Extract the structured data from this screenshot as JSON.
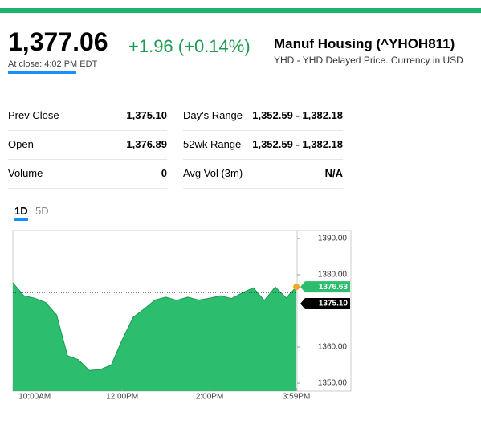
{
  "header": {
    "price": "1,377.06",
    "change": "+1.96 (+0.14%)",
    "close_time": "At close: 4:02 PM EDT",
    "name": "Manuf Housing (^YHOH811)",
    "source": "YHD - YHD Delayed Price. Currency in USD"
  },
  "stats": {
    "left": [
      [
        "Prev Close",
        "1,375.10"
      ],
      [
        "Open",
        "1,376.89"
      ],
      [
        "Volume",
        "0"
      ]
    ],
    "right": [
      [
        "Day's Range",
        "1,352.59 - 1,382.18"
      ],
      [
        "52wk Range",
        "1,352.59 - 1,382.18"
      ],
      [
        "Avg Vol (3m)",
        "N/A"
      ]
    ]
  },
  "tabs": [
    "1D",
    "5D"
  ],
  "chart_data": {
    "type": "area",
    "color": "#2dbd6e",
    "line_color": "#1a9a52",
    "x": [
      9.5,
      9.75,
      10,
      10.25,
      10.5,
      10.75,
      11,
      11.25,
      11.5,
      11.75,
      12,
      12.25,
      12.5,
      12.75,
      13,
      13.25,
      13.5,
      13.75,
      14,
      14.25,
      14.5,
      14.75,
      15,
      15.25,
      15.5,
      15.75,
      15.983
    ],
    "values": [
      1377.8,
      1374.2,
      1373.5,
      1372.3,
      1368.9,
      1357.6,
      1356.5,
      1353.5,
      1353.8,
      1355,
      1362,
      1368.2,
      1370.5,
      1373,
      1373.8,
      1372.9,
      1373.8,
      1373,
      1373.5,
      1374.2,
      1373.4,
      1375,
      1376.4,
      1372.9,
      1376.6,
      1373.6,
      1376.63
    ],
    "xlim": [
      9.5,
      16
    ],
    "ylim": [
      1347.8,
      1392.2
    ],
    "xticks": [
      {
        "value": 10,
        "label": "10:00AM"
      },
      {
        "value": 12,
        "label": "12:00PM"
      },
      {
        "value": 14,
        "label": "2:00PM"
      },
      {
        "value": 15.983,
        "label": "3:59PM"
      }
    ],
    "yticks": [
      {
        "value": 1350,
        "label": "1350.00"
      },
      {
        "value": 1360,
        "label": "1360.00"
      },
      {
        "value": 1380,
        "label": "1380.00"
      },
      {
        "value": 1390,
        "label": "1390.00"
      }
    ],
    "reference_line": {
      "value": 1375.1,
      "label": "1375.10"
    },
    "last_label": {
      "value": 1376.63,
      "label": "1376.63"
    }
  }
}
